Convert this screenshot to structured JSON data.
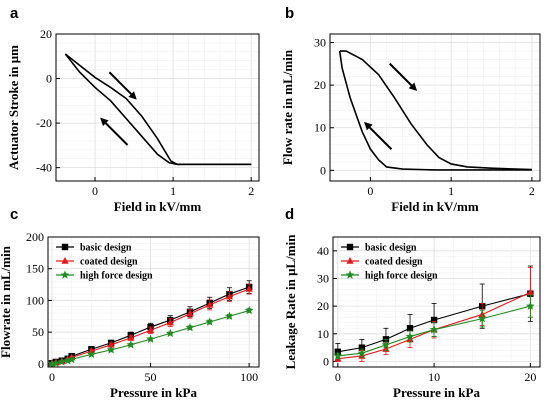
{
  "chart_data": [
    {
      "panel": "a",
      "type": "line",
      "xlabel": "Field in kV/mm",
      "ylabel": "Actuator Stroke in μm",
      "xlim": [
        -0.5,
        2.1
      ],
      "ylim": [
        -46,
        20
      ],
      "xticks": [
        0,
        1,
        2
      ],
      "yticks": [
        -40,
        -20,
        0,
        20
      ],
      "grid": true,
      "series": [
        {
          "x": [
            -0.38,
            -0.2,
            0,
            0.2,
            0.4,
            0.6,
            0.8,
            0.97,
            1.05,
            1.2,
            1.5,
            2.0
          ],
          "y": [
            11,
            6,
            0.5,
            -4,
            -9,
            -17,
            -27,
            -37,
            -38.5,
            -38.5,
            -38.5,
            -38.5
          ]
        },
        {
          "x": [
            2.0,
            1.5,
            1.2,
            1.05,
            0.95,
            0.8,
            0.6,
            0.4,
            0.2,
            0,
            -0.2,
            -0.38
          ],
          "y": [
            -38.5,
            -38.5,
            -38.5,
            -38.5,
            -37.8,
            -34,
            -26,
            -18,
            -10,
            -4,
            3,
            11
          ]
        }
      ],
      "arrows": [
        {
          "direction": "down-right",
          "at": [
            0.35,
            -3
          ]
        },
        {
          "direction": "up-left",
          "at": [
            0.25,
            -24
          ]
        }
      ]
    },
    {
      "panel": "b",
      "type": "line",
      "xlabel": "Field in kV/mm",
      "ylabel": "Flow rate in mL/min",
      "xlim": [
        -0.5,
        2.1
      ],
      "ylim": [
        -2.5,
        32
      ],
      "xticks": [
        0,
        1,
        2
      ],
      "yticks": [
        0,
        10,
        20,
        30
      ],
      "grid": true,
      "series": [
        {
          "x": [
            -0.38,
            -0.3,
            -0.1,
            0.1,
            0.3,
            0.5,
            0.7,
            0.85,
            1.0,
            1.2,
            1.5,
            1.8,
            2.0
          ],
          "y": [
            28,
            28,
            26,
            22.5,
            17,
            11,
            6,
            3,
            1.5,
            0.8,
            0.5,
            0.3,
            0.2
          ]
        },
        {
          "x": [
            2.0,
            1.5,
            1.0,
            0.8,
            0.6,
            0.4,
            0.2,
            0.1,
            0,
            -0.1,
            -0.25,
            -0.35,
            -0.38
          ],
          "y": [
            0.1,
            0.1,
            0.1,
            0.1,
            0.2,
            0.3,
            0.8,
            2.5,
            5,
            9,
            17,
            24,
            28
          ]
        }
      ],
      "arrows": [
        {
          "direction": "down-right",
          "at": [
            0.4,
            22
          ]
        },
        {
          "direction": "up-left",
          "at": [
            0.1,
            8
          ]
        }
      ]
    },
    {
      "panel": "c",
      "type": "line",
      "xlabel": "Pressure in kPa",
      "ylabel": "Flowrate in mL/min",
      "xlim": [
        -2,
        105
      ],
      "ylim": [
        -5,
        200
      ],
      "xticks": [
        0,
        50,
        100
      ],
      "yticks": [
        0,
        50,
        100,
        150,
        200
      ],
      "grid": true,
      "legend_position": "top-left",
      "series": [
        {
          "name": "basic design",
          "color": "#000000",
          "marker": "square",
          "x": [
            0,
            2,
            5,
            8,
            10,
            20,
            30,
            40,
            50,
            60,
            70,
            80,
            90,
            100
          ],
          "y": [
            1,
            3,
            5,
            8,
            12,
            23,
            33,
            45,
            58,
            69,
            82,
            96,
            110,
            121
          ],
          "err": [
            1,
            1,
            2,
            2,
            3,
            3,
            4,
            5,
            6,
            7,
            8,
            9,
            10,
            10
          ]
        },
        {
          "name": "coated design",
          "color": "#e31a1c",
          "marker": "triangle",
          "x": [
            0,
            2,
            5,
            8,
            10,
            20,
            30,
            40,
            50,
            60,
            70,
            80,
            90,
            100
          ],
          "y": [
            1,
            2,
            4,
            7,
            10,
            20,
            30,
            41,
            53,
            65,
            79,
            93,
            106,
            118
          ],
          "err": [
            1,
            1,
            2,
            2,
            2,
            3,
            3,
            4,
            5,
            6,
            7,
            8,
            8,
            8
          ]
        },
        {
          "name": "high force design",
          "color": "#228b22",
          "marker": "star",
          "x": [
            0,
            2,
            5,
            8,
            10,
            20,
            30,
            40,
            50,
            60,
            70,
            80,
            90,
            100
          ],
          "y": [
            0,
            1,
            3,
            5,
            7,
            15,
            22,
            30,
            39,
            48,
            57,
            66,
            75,
            84
          ],
          "err": [
            0.5,
            0.5,
            1,
            1,
            1,
            1,
            2,
            2,
            2,
            2,
            3,
            3,
            3,
            3
          ]
        }
      ]
    },
    {
      "panel": "d",
      "type": "line",
      "xlabel": "Pressure in kPa",
      "ylabel": "Leakage Rate in μL/min",
      "xlim": [
        -0.5,
        21
      ],
      "ylim": [
        -2,
        45
      ],
      "xticks": [
        0,
        10,
        20
      ],
      "yticks": [
        0,
        10,
        20,
        30,
        40
      ],
      "grid": true,
      "legend_position": "top-left",
      "series": [
        {
          "name": "basic design",
          "color": "#000000",
          "marker": "square",
          "x": [
            0,
            2.5,
            5,
            7.5,
            10,
            15,
            20
          ],
          "y": [
            3.5,
            5,
            8,
            12,
            15,
            20,
            24.5
          ],
          "err": [
            3,
            3,
            4,
            5,
            6,
            8,
            10
          ]
        },
        {
          "name": "coated design",
          "color": "#e31a1c",
          "marker": "triangle",
          "x": [
            0,
            2.5,
            5,
            7.5,
            10,
            15,
            20
          ],
          "y": [
            1,
            2,
            4.5,
            8,
            11.5,
            17,
            25
          ],
          "err": [
            1,
            2,
            2,
            3,
            3,
            4,
            9
          ]
        },
        {
          "name": "high force design",
          "color": "#228b22",
          "marker": "star",
          "x": [
            0,
            2.5,
            5,
            7.5,
            10,
            15,
            20
          ],
          "y": [
            2,
            3,
            6,
            9,
            11.5,
            15.5,
            20
          ],
          "err": [
            1,
            1.5,
            2,
            2,
            2.5,
            3,
            4
          ]
        }
      ]
    }
  ]
}
